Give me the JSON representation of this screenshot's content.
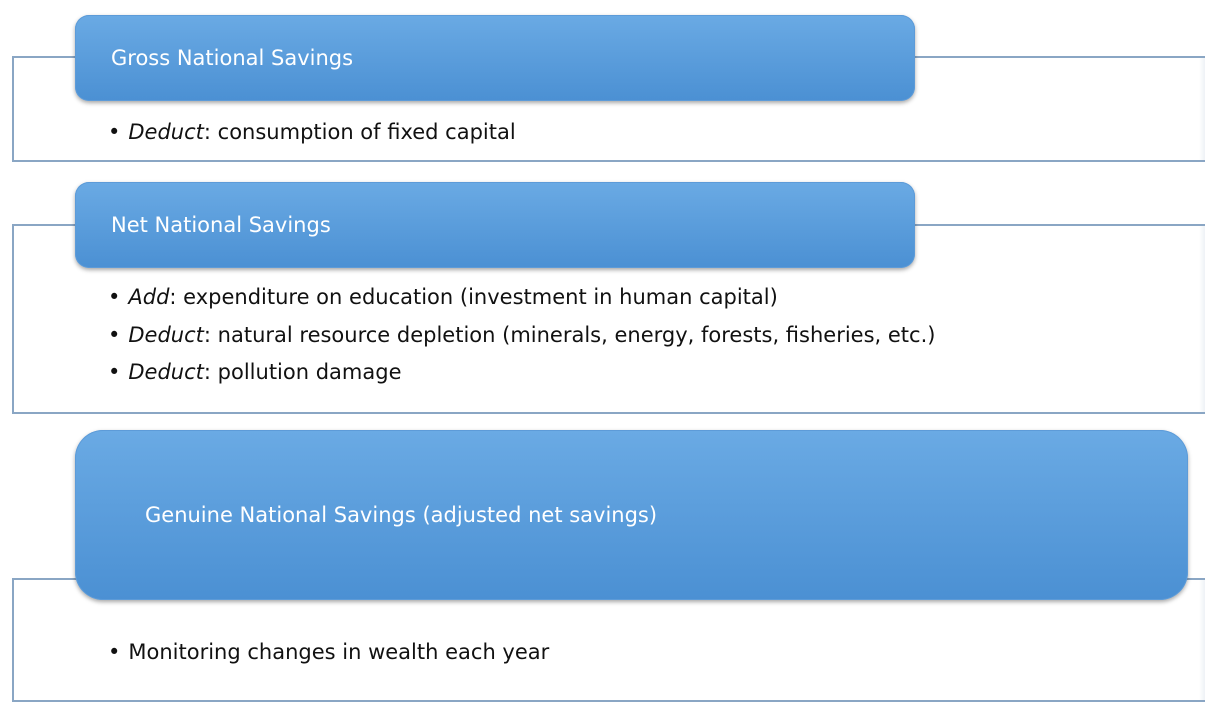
{
  "sections": [
    {
      "title": "Gross National Savings",
      "items": [
        {
          "prefix": "Deduct",
          "text": ": consumption of fixed capital"
        }
      ]
    },
    {
      "title": "Net National Savings",
      "items": [
        {
          "prefix": "Add",
          "text": ": expenditure on education (investment in human capital)"
        },
        {
          "prefix": "Deduct",
          "text": ": natural resource depletion (minerals, energy, forests, fisheries, etc.)"
        },
        {
          "prefix": "Deduct",
          "text": ": pollution damage"
        }
      ]
    },
    {
      "title": "Genuine National Savings (adjusted net savings)",
      "items": [
        {
          "text": "Monitoring changes in wealth each year"
        }
      ]
    }
  ]
}
